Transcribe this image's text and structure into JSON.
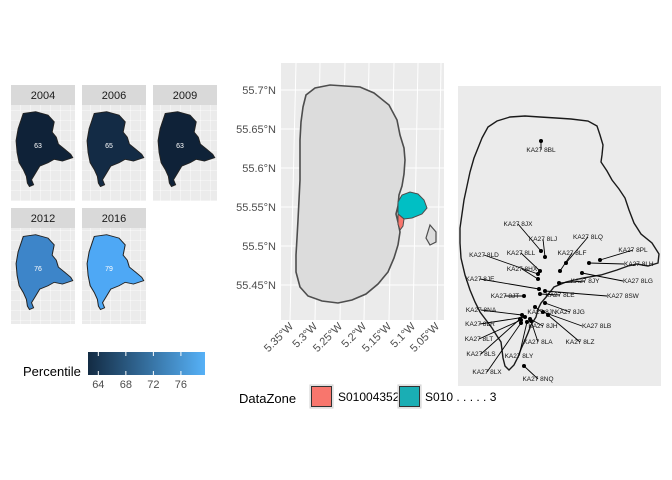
{
  "facets": [
    {
      "year": "2004",
      "value": "63",
      "color": "#0f2238"
    },
    {
      "year": "2006",
      "value": "65",
      "color": "#132b45"
    },
    {
      "year": "2009",
      "value": "63",
      "color": "#0f2238"
    },
    {
      "year": "2012",
      "value": "76",
      "color": "#3d85c9"
    },
    {
      "year": "2016",
      "value": "79",
      "color": "#4ea8f5"
    }
  ],
  "percentile_legend": {
    "title": "Percentile",
    "ticks": [
      "64",
      "68",
      "72",
      "76"
    ],
    "tick_values": [
      64,
      68,
      72,
      76
    ],
    "range": [
      62.5,
      79.5
    ],
    "low_color": "#132b43",
    "high_color": "#56b1f7"
  },
  "map": {
    "lat_labels": [
      "55.7°N",
      "55.65°N",
      "55.6°N",
      "55.55°N",
      "55.5°N",
      "55.45°N"
    ],
    "lon_labels": [
      "5.35°W",
      "5.3°W",
      "5.25°W",
      "5.2°W",
      "5.15°W",
      "5.1°W",
      "5.05°W"
    ],
    "zone_colors": {
      "S01004352": "#f8766d",
      "S01004353": "#00bfc4"
    }
  },
  "datazone_legend": {
    "title": "DataZone",
    "items": [
      {
        "label": "S01004352",
        "color": "#f8766d"
      },
      {
        "label": "S010 . . . . . 3",
        "color": "#1aaeb4"
      }
    ]
  },
  "postcodes": [
    "KA27 8BL",
    "KA27 8JX",
    "KA27 8LQ",
    "KA27 8LJ",
    "KA27 8PL",
    "KA27 8LD",
    "KA27 8LL",
    "KA27 8LF",
    "KA27 8LH",
    "KA27 8HX",
    "KA27 8LG",
    "KA27 8JE",
    "KA27 8JY",
    "KA27 8LE",
    "KA27 8SW",
    "KA27 8JT",
    "KA27 8NA",
    "KA27 8JN",
    "KA27 8JG",
    "KA27 8LR",
    "KA27 8JH",
    "KA27 8LB",
    "KA27 8LT",
    "KA27 8LA",
    "KA27 8LZ",
    "KA27 8LS",
    "KA27 8LY",
    "KA27 8LX",
    "KA27 8NQ"
  ]
}
